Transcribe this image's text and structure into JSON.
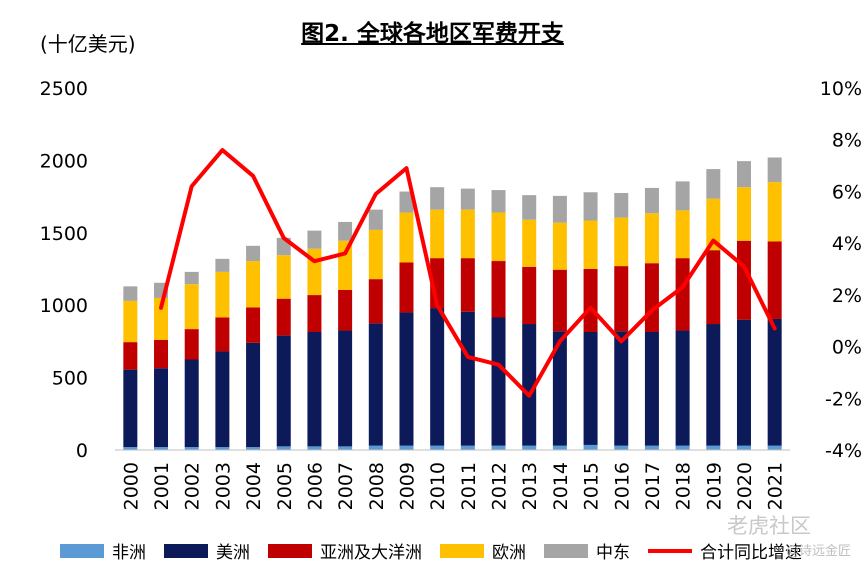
{
  "chart_data": {
    "type": "bar",
    "title": "图2. 全球各地区军费开支",
    "unit_label": "(十亿美元)",
    "categories": [
      "2000",
      "2001",
      "2002",
      "2003",
      "2004",
      "2005",
      "2006",
      "2007",
      "2008",
      "2009",
      "2010",
      "2011",
      "2012",
      "2013",
      "2014",
      "2015",
      "2016",
      "2017",
      "2018",
      "2019",
      "2020",
      "2021"
    ],
    "stacked": true,
    "series": [
      {
        "name": "非洲",
        "color": "#5b9bd5",
        "values": [
          20,
          20,
          20,
          20,
          20,
          25,
          25,
          25,
          30,
          30,
          30,
          30,
          30,
          30,
          30,
          35,
          30,
          30,
          30,
          30,
          30,
          30
        ]
      },
      {
        "name": "美洲",
        "color": "#0d1a5a",
        "values": [
          535,
          545,
          605,
          660,
          720,
          765,
          790,
          800,
          845,
          920,
          950,
          925,
          885,
          840,
          790,
          780,
          790,
          785,
          795,
          840,
          870,
          875
        ]
      },
      {
        "name": "亚洲及大洋洲",
        "color": "#c00000",
        "values": [
          190,
          195,
          210,
          235,
          245,
          255,
          255,
          280,
          305,
          345,
          345,
          370,
          390,
          395,
          425,
          435,
          450,
          475,
          500,
          510,
          545,
          535
        ]
      },
      {
        "name": "欧洲",
        "color": "#ffc000",
        "values": [
          285,
          290,
          310,
          315,
          320,
          300,
          320,
          340,
          340,
          345,
          335,
          335,
          335,
          325,
          325,
          335,
          335,
          345,
          330,
          355,
          370,
          410
        ]
      },
      {
        "name": "中东",
        "color": "#a5a5a5",
        "values": [
          100,
          105,
          85,
          90,
          105,
          120,
          125,
          130,
          140,
          145,
          155,
          145,
          155,
          170,
          185,
          195,
          170,
          175,
          200,
          205,
          180,
          170
        ]
      }
    ],
    "line_series": {
      "name": "合计同比增速",
      "color": "#ff0000",
      "values": [
        1.5,
        6.2,
        7.6,
        6.6,
        4.2,
        3.3,
        3.6,
        5.9,
        6.9,
        1.6,
        -0.4,
        -0.7,
        -1.9,
        0.2,
        1.5,
        0.2,
        1.4,
        2.3,
        4.1,
        3.1,
        0.7
      ]
    },
    "line_x_start_index": 1,
    "ylim_left": [
      0,
      2500
    ],
    "yticks_left": [
      "0",
      "500",
      "1000",
      "1500",
      "2000",
      "2500"
    ],
    "ylim_right": [
      -4,
      10
    ],
    "yticks_right": [
      "-4%",
      "-2%",
      "0%",
      "2%",
      "4%",
      "6%",
      "8%",
      "10%"
    ],
    "grid": false,
    "legend_position": "bottom"
  },
  "legend": [
    {
      "label": "非洲",
      "color": "#5b9bd5",
      "kind": "bar"
    },
    {
      "label": "美洲",
      "color": "#0d1a5a",
      "kind": "bar"
    },
    {
      "label": "亚洲及大洋洲",
      "color": "#c00000",
      "kind": "bar"
    },
    {
      "label": "欧洲",
      "color": "#ffc000",
      "kind": "bar"
    },
    {
      "label": "中东",
      "color": "#a5a5a5",
      "kind": "bar"
    },
    {
      "label": "合计同比增速",
      "color": "#ff0000",
      "kind": "line"
    }
  ],
  "watermark": "老虎社区",
  "watermark_sub": "@诗远金匠"
}
